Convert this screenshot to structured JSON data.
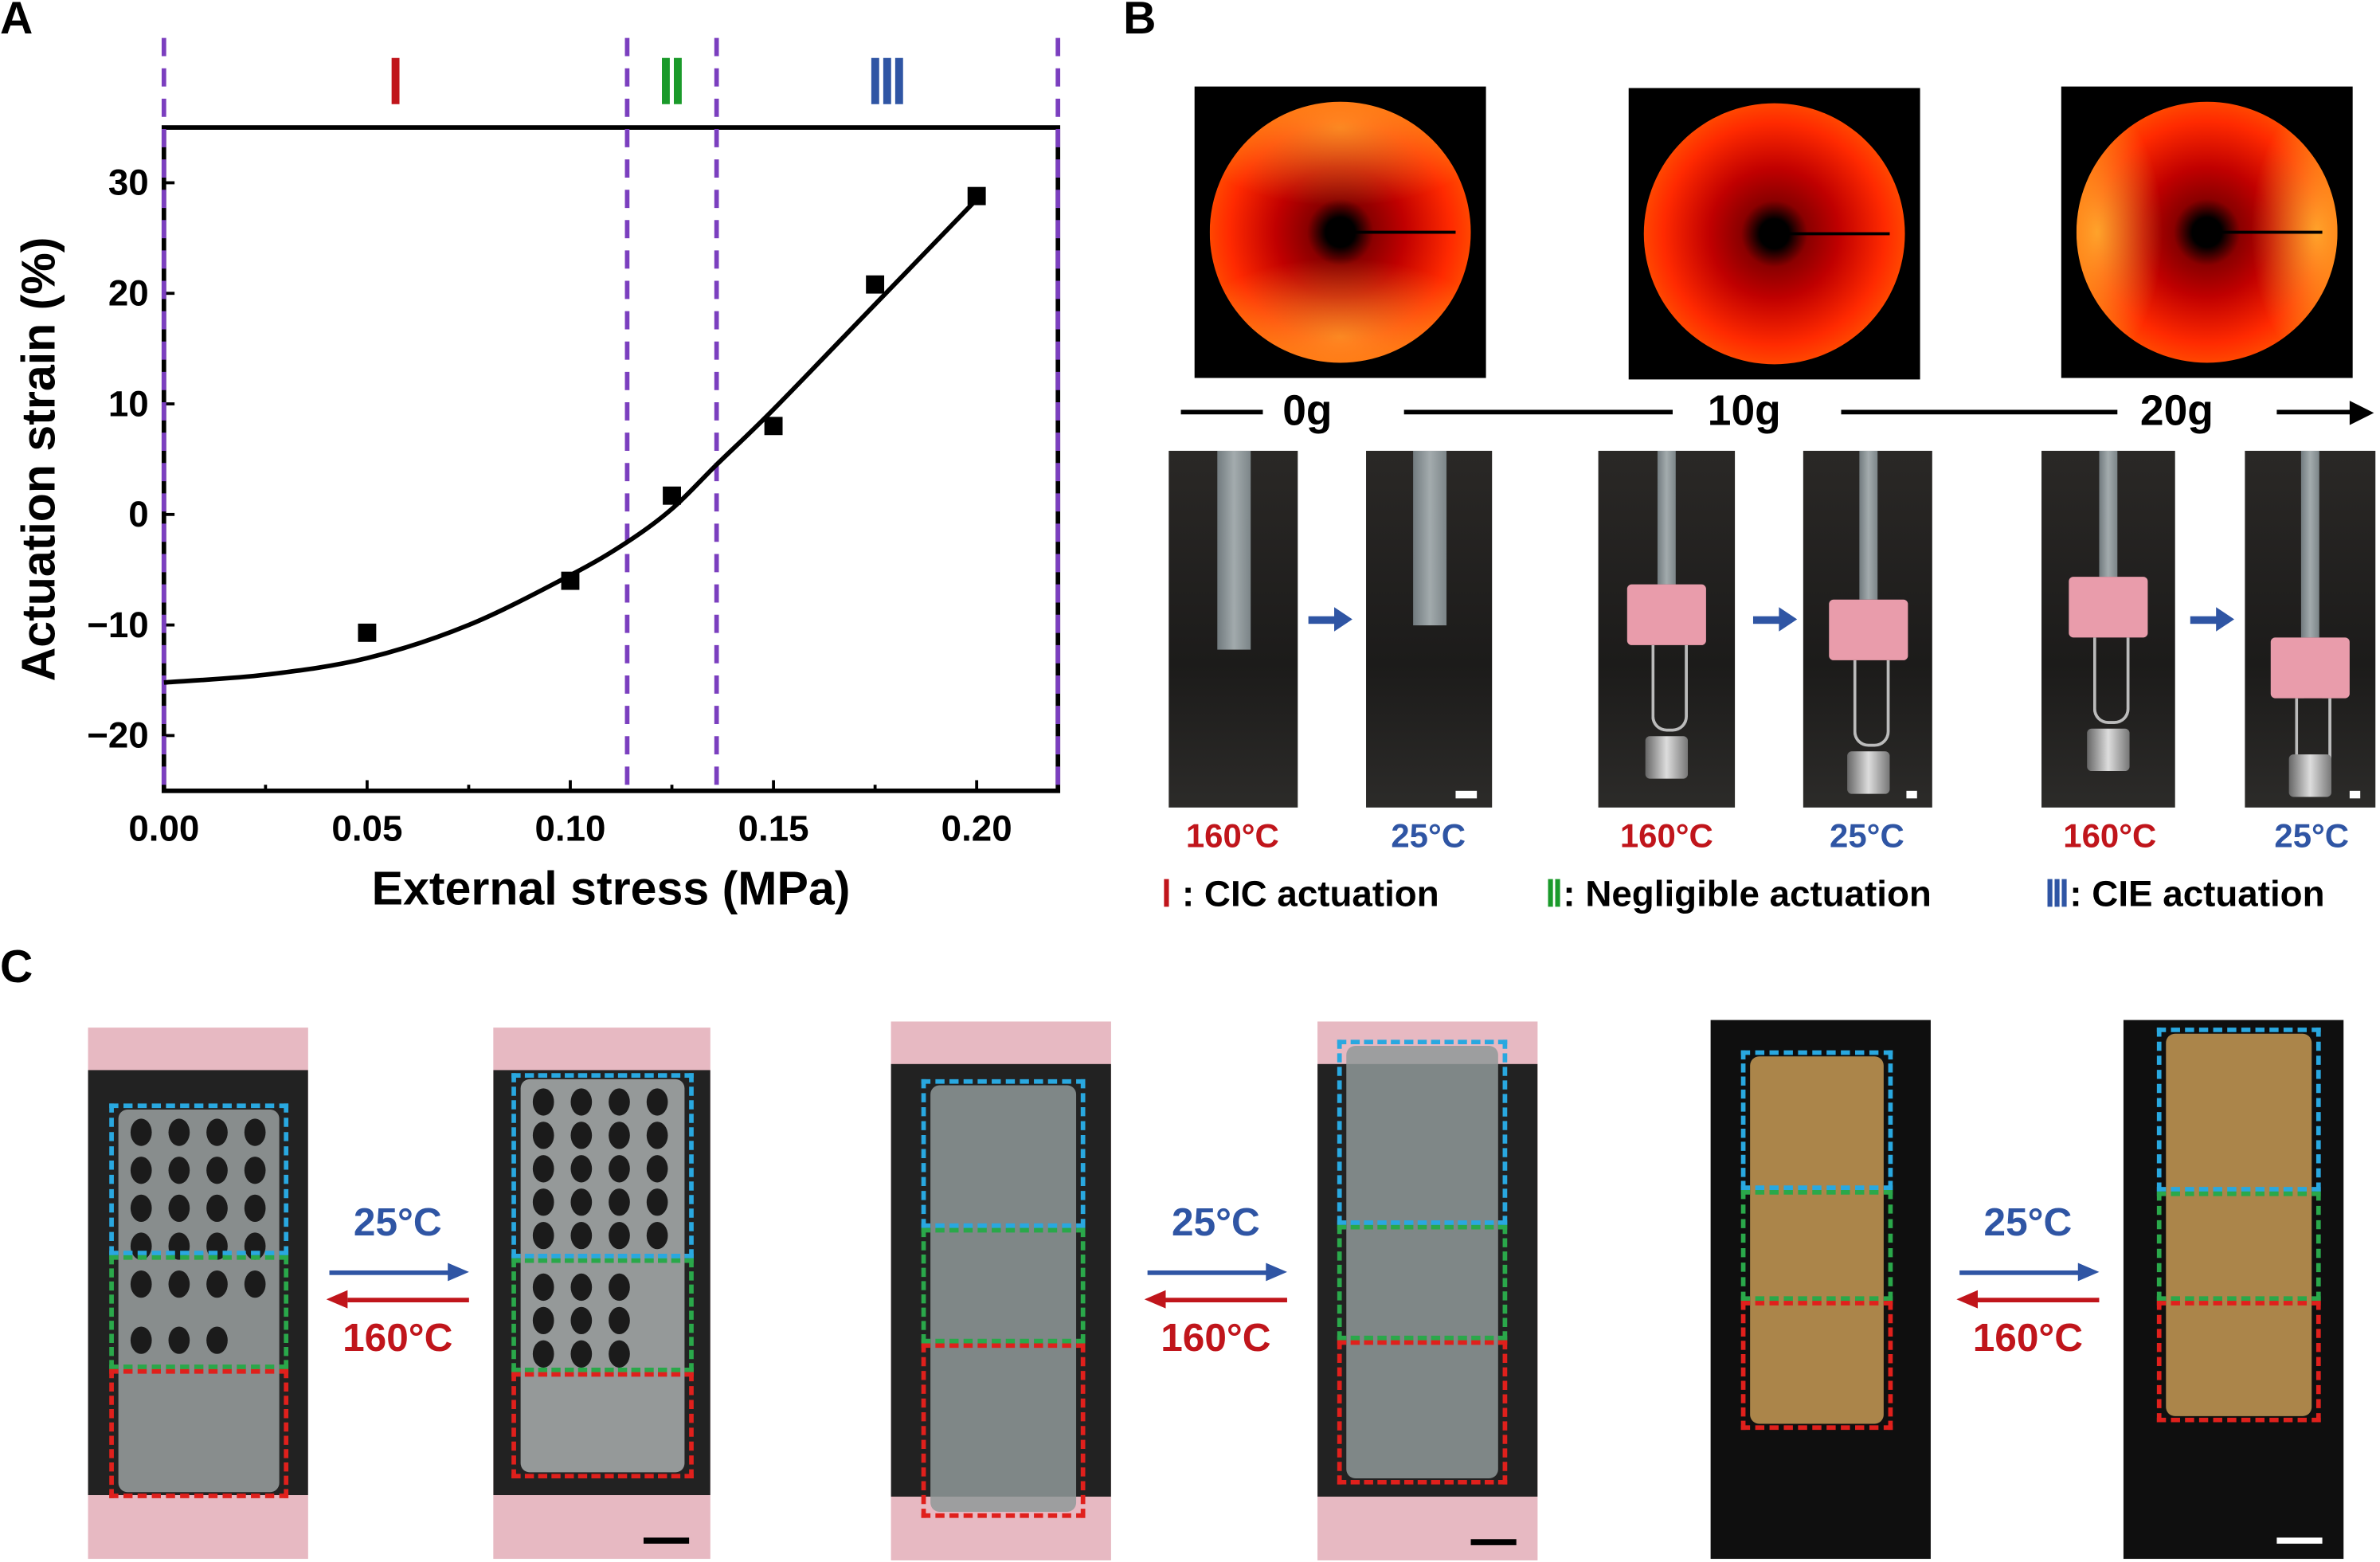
{
  "panels": {
    "a": "A",
    "b": "B",
    "c": "C"
  },
  "colors": {
    "region_i": "#c0151b",
    "region_ii": "#1a9a2a",
    "region_iii": "#2f55a4",
    "divider": "#7b3fbf",
    "hot": "#c0151b",
    "cold": "#2f55a4"
  },
  "chart_data": {
    "type": "scatter",
    "title": "",
    "xlabel": "External stress (MPa)",
    "ylabel": "Actuation strain (%)",
    "xlim": [
      0,
      0.22
    ],
    "ylim": [
      -25,
      35
    ],
    "xticks": [
      "0.00",
      "0.05",
      "0.10",
      "0.15",
      "0.20"
    ],
    "yticks": [
      "30",
      "20",
      "10",
      "0",
      "−10",
      "−20"
    ],
    "grid": false,
    "x": [
      0.05,
      0.1,
      0.125,
      0.15,
      0.175,
      0.2
    ],
    "y": [
      -10.7,
      -6.0,
      1.7,
      8.0,
      20.8,
      28.8
    ],
    "fit_curve": {
      "x": [
        0,
        0.025,
        0.05,
        0.075,
        0.1,
        0.114,
        0.125,
        0.136,
        0.15,
        0.175,
        0.2
      ],
      "y": [
        -15.2,
        -14.5,
        -13.0,
        -10.0,
        -5.5,
        -2.5,
        0.5,
        4.5,
        9.5,
        19.0,
        28.5
      ]
    },
    "region_boundaries": [
      0,
      0.114,
      0.136,
      0.22
    ],
    "regions": [
      {
        "label": "Ⅰ"
      },
      {
        "label": "Ⅱ"
      },
      {
        "label": "Ⅲ"
      }
    ]
  },
  "panel_b": {
    "loads": [
      "0g",
      "10g",
      "20g"
    ],
    "temps": [
      "160°C",
      "25°C",
      "160°C",
      "25°C",
      "160°C",
      "25°C"
    ],
    "legend": [
      {
        "numeral": "Ⅰ",
        "text": " : CIC actuation"
      },
      {
        "numeral": "Ⅱ",
        "text": ": Negligible actuation"
      },
      {
        "numeral": "Ⅲ",
        "text": ": CIE actuation"
      }
    ]
  },
  "panel_c": {
    "pairs": [
      {
        "cold": "25°C",
        "hot": "160°C"
      },
      {
        "cold": "25°C",
        "hot": "160°C"
      },
      {
        "cold": "25°C",
        "hot": "160°C"
      }
    ]
  }
}
